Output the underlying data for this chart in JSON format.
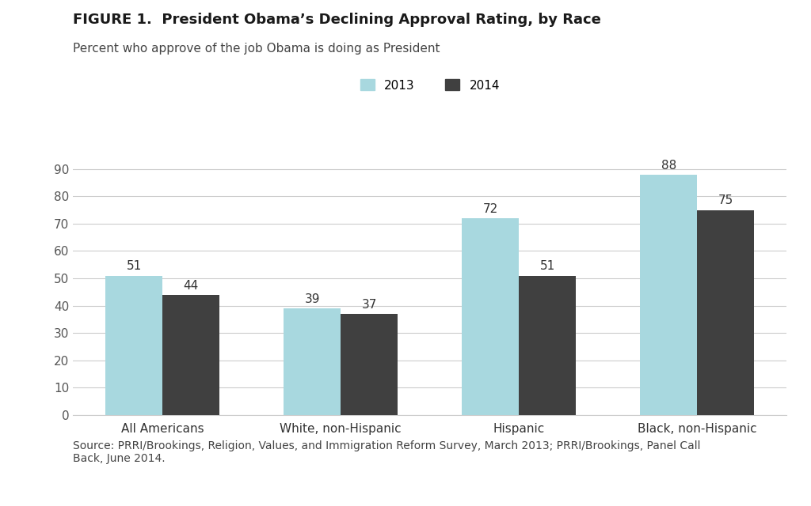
{
  "title_bold": "FIGURE 1.  President Obama’s Declining Approval Rating, by Race",
  "subtitle": "Percent who approve of the job Obama is doing as President",
  "categories": [
    "All Americans",
    "White, non-Hispanic",
    "Hispanic",
    "Black, non-Hispanic"
  ],
  "values_2013": [
    51,
    39,
    72,
    88
  ],
  "values_2014": [
    44,
    37,
    51,
    75
  ],
  "color_2013": "#a8d8df",
  "color_2014": "#404040",
  "legend_labels": [
    "2013",
    "2014"
  ],
  "ylim": [
    0,
    100
  ],
  "yticks": [
    0,
    10,
    20,
    30,
    40,
    50,
    60,
    70,
    80,
    90
  ],
  "background_color": "#ffffff",
  "source_text": "Source: PRRI/Brookings, Religion, Values, and Immigration Reform Survey, March 2013; PRRI/Brookings, Panel Call\nBack, June 2014.",
  "bar_width": 0.32,
  "label_fontsize": 11,
  "tick_fontsize": 11,
  "title_fontsize": 13,
  "subtitle_fontsize": 11,
  "source_fontsize": 10
}
